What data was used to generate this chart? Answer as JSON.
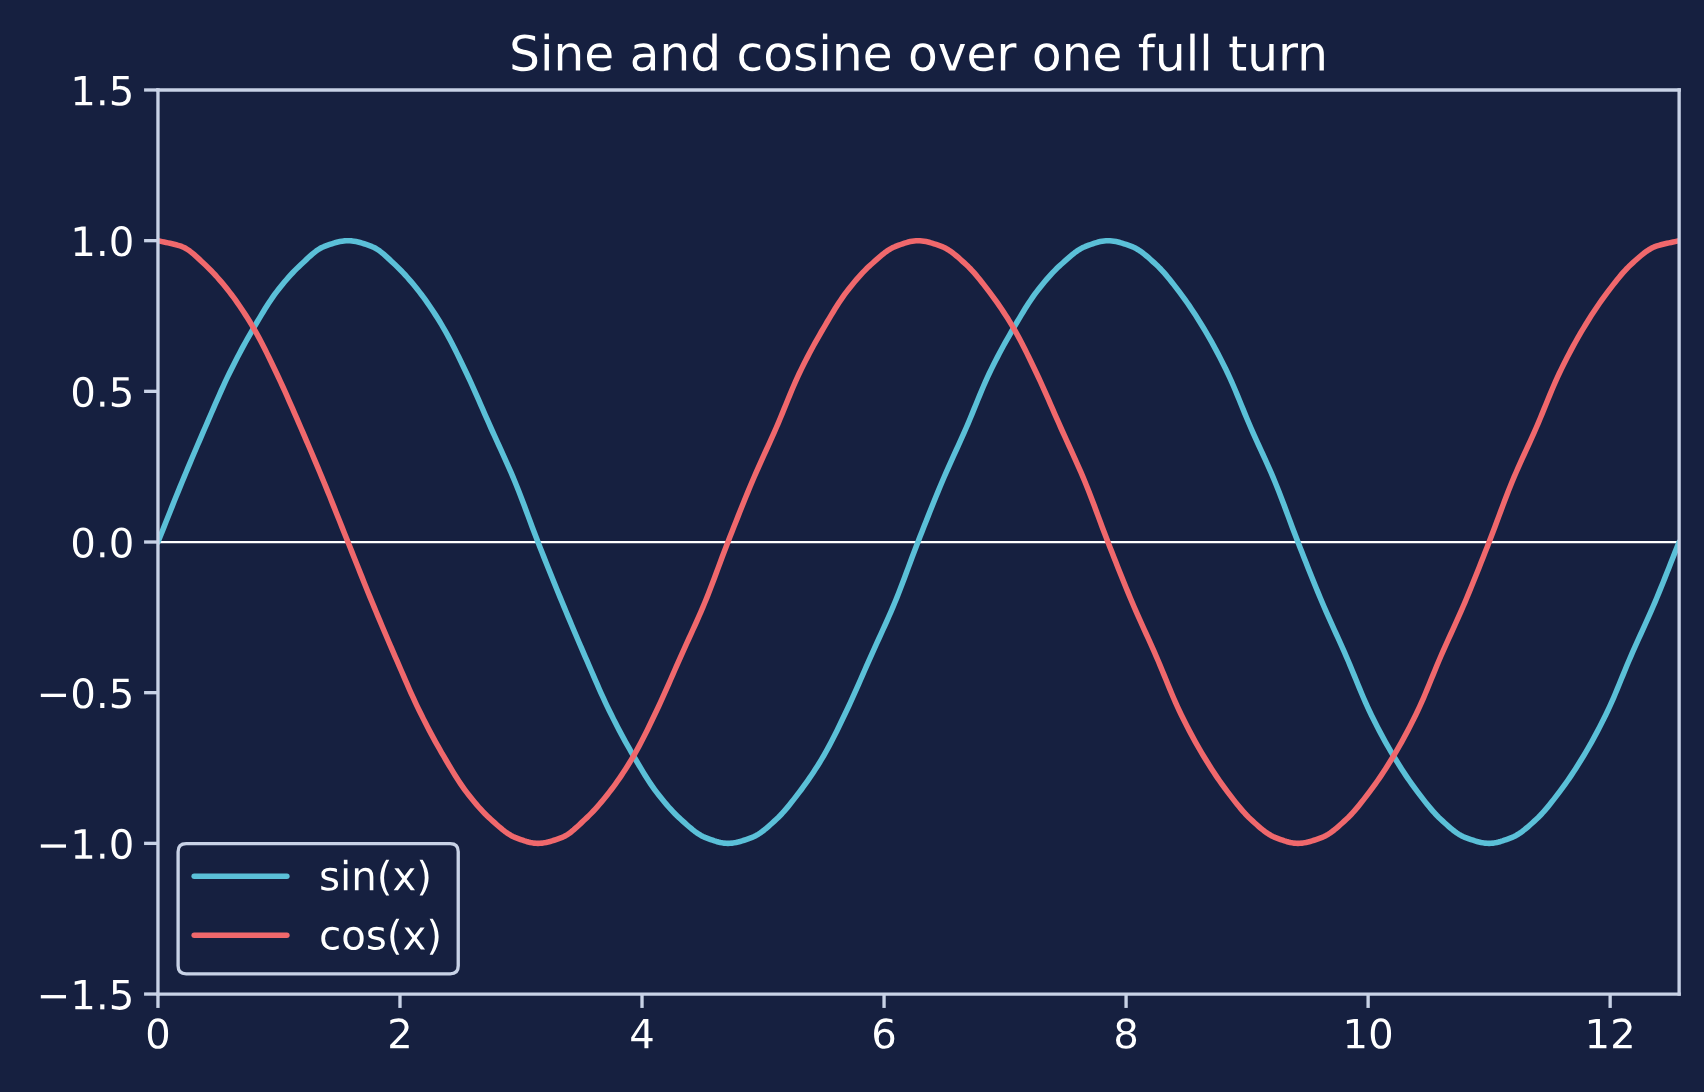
{
  "chart_data": {
    "type": "line",
    "title": "Sine and cosine over one full turn",
    "x": [
      0,
      0.2,
      0.39,
      0.59,
      0.79,
      0.98,
      1.18,
      1.37,
      1.57,
      1.77,
      1.96,
      2.16,
      2.36,
      2.55,
      2.75,
      2.95,
      3.14,
      3.34,
      3.53,
      3.73,
      3.93,
      4.12,
      4.32,
      4.52,
      4.71,
      4.91,
      5.11,
      5.3,
      5.5,
      5.69,
      5.89,
      6.09,
      6.28,
      6.48,
      6.68,
      6.87,
      7.07,
      7.26,
      7.46,
      7.66,
      7.85,
      8.05,
      8.25,
      8.44,
      8.64,
      8.84,
      9.03,
      9.23,
      9.42,
      9.62,
      9.82,
      10.01,
      10.21,
      10.41,
      10.6,
      10.8,
      11.0,
      11.19,
      11.39,
      11.58,
      11.78,
      11.98,
      12.17,
      12.37,
      12.57
    ],
    "series": [
      {
        "name": "sin(x)",
        "color": "#5bc0d8",
        "values": [
          0,
          0.2,
          0.38,
          0.56,
          0.71,
          0.83,
          0.92,
          0.98,
          1,
          0.98,
          0.92,
          0.83,
          0.71,
          0.56,
          0.38,
          0.2,
          0,
          -0.2,
          -0.38,
          -0.56,
          -0.71,
          -0.83,
          -0.92,
          -0.98,
          -1,
          -0.98,
          -0.92,
          -0.83,
          -0.71,
          -0.56,
          -0.38,
          -0.2,
          0,
          0.2,
          0.38,
          0.56,
          0.71,
          0.83,
          0.92,
          0.98,
          1,
          0.98,
          0.92,
          0.83,
          0.71,
          0.56,
          0.38,
          0.2,
          0,
          -0.2,
          -0.38,
          -0.56,
          -0.71,
          -0.83,
          -0.92,
          -0.98,
          -1,
          -0.98,
          -0.92,
          -0.83,
          -0.71,
          -0.56,
          -0.38,
          -0.2,
          0
        ]
      },
      {
        "name": "cos(x)",
        "color": "#f0686c",
        "values": [
          1,
          0.98,
          0.92,
          0.83,
          0.71,
          0.56,
          0.38,
          0.2,
          0,
          -0.2,
          -0.38,
          -0.56,
          -0.71,
          -0.83,
          -0.92,
          -0.98,
          -1,
          -0.98,
          -0.92,
          -0.83,
          -0.71,
          -0.56,
          -0.38,
          -0.2,
          0,
          0.2,
          0.38,
          0.56,
          0.71,
          0.83,
          0.92,
          0.98,
          1,
          0.98,
          0.92,
          0.83,
          0.71,
          0.56,
          0.38,
          0.2,
          0,
          -0.2,
          -0.38,
          -0.56,
          -0.71,
          -0.83,
          -0.92,
          -0.98,
          -1,
          -0.98,
          -0.92,
          -0.83,
          -0.71,
          -0.56,
          -0.38,
          -0.2,
          0,
          0.2,
          0.38,
          0.56,
          0.71,
          0.83,
          0.92,
          0.98,
          1
        ]
      }
    ],
    "xlim": [
      0,
      12.57
    ],
    "xticks": [
      0,
      2,
      4,
      6,
      8,
      10,
      12
    ],
    "ylim": [
      -1.5,
      1.5
    ],
    "yticks": [
      -1.5,
      {
        "value": -1,
        "label": "−1.0"
      },
      -0.5,
      {
        "value": 0,
        "label": "0.0"
      },
      0.5,
      {
        "value": 1,
        "label": "1.0"
      },
      1.5
    ],
    "ref_lines": [
      {
        "axis": "y",
        "value": 0,
        "color": "#ffffff"
      }
    ],
    "grid": false,
    "legend": "bottom left",
    "line_style": "solid"
  }
}
